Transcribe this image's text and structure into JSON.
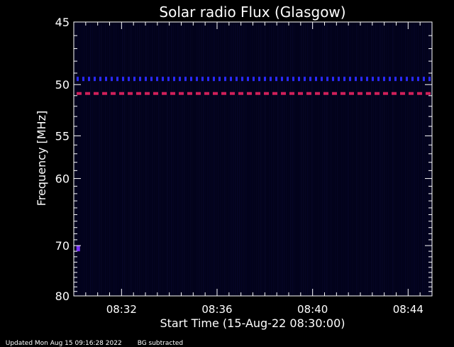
{
  "chart_data": {
    "type": "heatmap",
    "title": "Solar radio Flux (Glasgow)",
    "xlabel": "Start Time (15-Aug-22 08:30:00)",
    "ylabel": "Frequency [MHz]",
    "x_range_minutes": [
      0,
      15
    ],
    "x_ticks": [
      {
        "minute": 2,
        "label": "08:32"
      },
      {
        "minute": 6,
        "label": "08:36"
      },
      {
        "minute": 10,
        "label": "08:40"
      },
      {
        "minute": 14,
        "label": "08:44"
      }
    ],
    "y_range_mhz": [
      45,
      80
    ],
    "y_scale": "reciprocal",
    "y_ticks": [
      {
        "mhz": 45,
        "label": "45"
      },
      {
        "mhz": 50,
        "label": "50"
      },
      {
        "mhz": 55,
        "label": "55"
      },
      {
        "mhz": 60,
        "label": "60"
      },
      {
        "mhz": 70,
        "label": "70"
      },
      {
        "mhz": 80,
        "label": "80"
      }
    ],
    "features": [
      {
        "name": "blue persistent emission",
        "mhz": 49.5,
        "color": "#2a2aff"
      },
      {
        "name": "red persistent emission",
        "mhz": 50.8,
        "color": "#d0205a"
      },
      {
        "name": "isolated burst",
        "mhz": 70.5,
        "minute": 0.2,
        "color": "#7a30ff"
      }
    ],
    "background_color": "#02021a",
    "grid": false
  },
  "footer": {
    "updated": "Updated Mon Aug 15 09:16:28 2022",
    "note": "BG subtracted"
  }
}
